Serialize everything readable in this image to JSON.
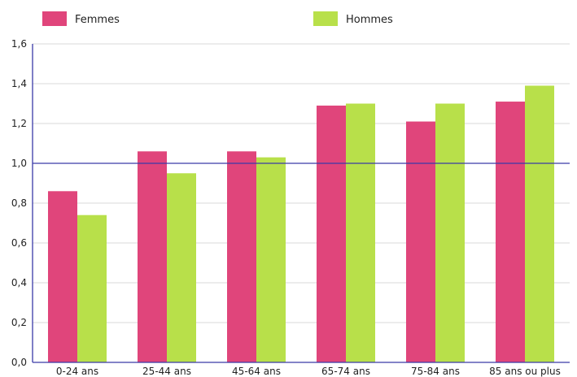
{
  "chart_data": {
    "type": "bar",
    "categories": [
      "0-24 ans",
      "25-44 ans",
      "45-64 ans",
      "65-74 ans",
      "75-84 ans",
      "85 ans ou plus"
    ],
    "series": [
      {
        "name": "Femmes",
        "values": [
          0.86,
          1.06,
          1.06,
          1.29,
          1.21,
          1.31
        ],
        "color": "#e0457b"
      },
      {
        "name": "Hommes",
        "values": [
          0.74,
          0.95,
          1.03,
          1.3,
          1.3,
          1.39
        ],
        "color": "#b8e04a"
      }
    ],
    "title": "",
    "xlabel": "",
    "ylabel": "",
    "ylim": [
      0,
      1.6
    ],
    "yticks": [
      "0,0",
      "0,2",
      "0,4",
      "0,6",
      "0,8",
      "1,0",
      "1,2",
      "1,4",
      "1,6"
    ],
    "reference_line": {
      "value": 1.0,
      "color": "#3a3aa8"
    },
    "grid": true,
    "legend_position": "top"
  }
}
